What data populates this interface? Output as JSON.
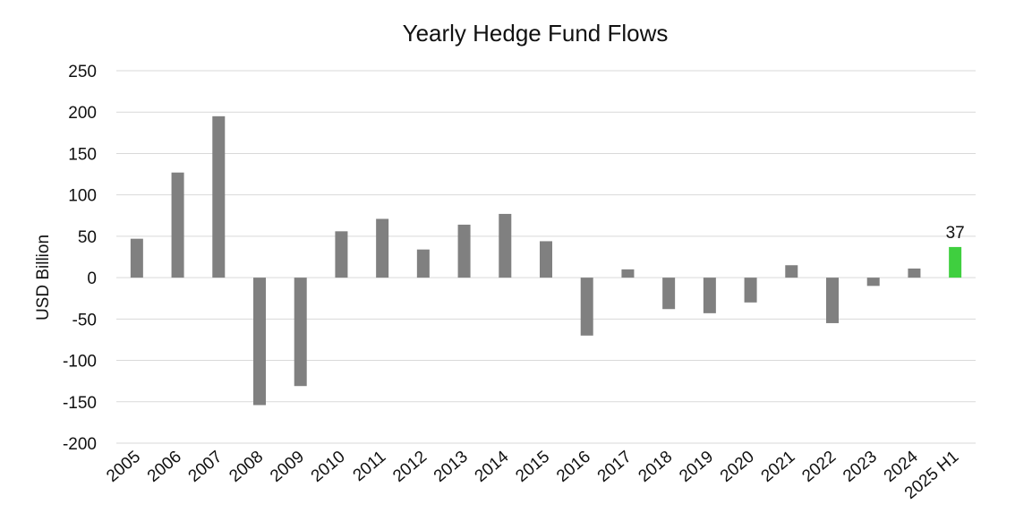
{
  "chart_data": {
    "type": "bar",
    "title": "Yearly Hedge Fund Flows",
    "ylabel": "USD Billion",
    "xlabel": "",
    "ylim": [
      -200,
      250
    ],
    "yticks": [
      250,
      200,
      150,
      100,
      50,
      0,
      -50,
      -100,
      -150,
      -200
    ],
    "grid": true,
    "categories": [
      "2005",
      "2006",
      "2007",
      "2008",
      "2009",
      "2010",
      "2011",
      "2012",
      "2013",
      "2014",
      "2015",
      "2016",
      "2017",
      "2018",
      "2019",
      "2020",
      "2021",
      "2022",
      "2023",
      "2024",
      "2025 H1"
    ],
    "values": [
      47,
      127,
      195,
      -154,
      -131,
      56,
      71,
      34,
      64,
      77,
      44,
      -70,
      10,
      -38,
      -43,
      -30,
      15,
      -55,
      -10,
      11,
      37
    ],
    "colors": {
      "default": "#808080",
      "highlight": "#3fcf3f"
    },
    "highlight_index": 20,
    "data_labels": [
      {
        "index": 20,
        "text": "37"
      }
    ]
  }
}
